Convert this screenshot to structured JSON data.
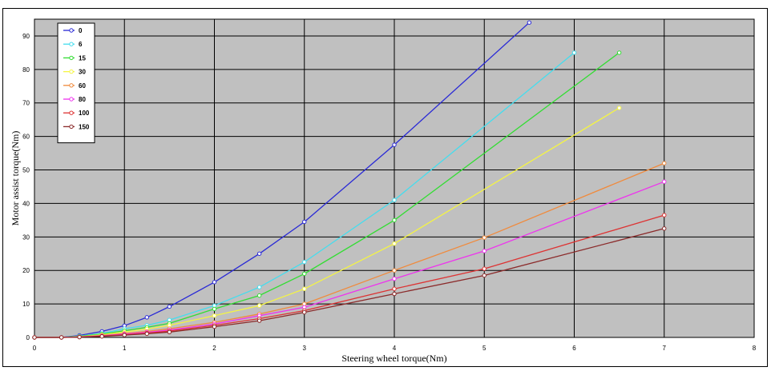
{
  "chart_data": {
    "type": "line",
    "title": "",
    "xlabel": "Steering wheel torque(Nm)",
    "ylabel": "Motor assist torque(Nm)",
    "xlim": [
      0,
      8
    ],
    "ylim": [
      0,
      95
    ],
    "xticks": [
      "0",
      "1",
      "2",
      "3",
      "4",
      "5",
      "6",
      "7",
      "8"
    ],
    "yticks": [
      "0",
      "10",
      "20",
      "30",
      "40",
      "50",
      "60",
      "70",
      "80",
      "90"
    ],
    "grid": true,
    "legend_position": "top-left",
    "background": "#c0c0c0",
    "series": [
      {
        "name": "0",
        "color": "#2a2ad6",
        "points": [
          [
            0,
            0
          ],
          [
            0.3,
            0
          ],
          [
            0.5,
            0.6
          ],
          [
            0.75,
            1.8
          ],
          [
            1,
            3.5
          ],
          [
            1.25,
            6
          ],
          [
            1.5,
            9.2
          ],
          [
            2,
            16.5
          ],
          [
            2.5,
            25
          ],
          [
            3,
            34.5
          ],
          [
            4,
            57.5
          ],
          [
            5.5,
            94
          ]
        ]
      },
      {
        "name": "6",
        "color": "#44ddee",
        "points": [
          [
            0,
            0
          ],
          [
            0.3,
            0
          ],
          [
            0.5,
            0.4
          ],
          [
            0.75,
            1.2
          ],
          [
            1,
            2.6
          ],
          [
            1.25,
            3.6
          ],
          [
            1.5,
            5.2
          ],
          [
            2,
            9.5
          ],
          [
            2.5,
            15
          ],
          [
            3,
            22.5
          ],
          [
            4,
            41
          ],
          [
            6,
            85
          ]
        ]
      },
      {
        "name": "15",
        "color": "#33dd33",
        "points": [
          [
            0,
            0
          ],
          [
            0.3,
            0
          ],
          [
            0.5,
            0.3
          ],
          [
            0.75,
            1
          ],
          [
            1,
            2
          ],
          [
            1.25,
            3
          ],
          [
            1.5,
            4.2
          ],
          [
            2,
            8.5
          ],
          [
            2.5,
            12.5
          ],
          [
            3,
            19
          ],
          [
            4,
            35
          ],
          [
            6.5,
            85
          ]
        ]
      },
      {
        "name": "30",
        "color": "#f5f542",
        "points": [
          [
            0,
            0
          ],
          [
            0.3,
            0
          ],
          [
            0.5,
            0.2
          ],
          [
            0.75,
            0.8
          ],
          [
            1,
            1.6
          ],
          [
            1.25,
            2.5
          ],
          [
            1.5,
            3.6
          ],
          [
            2,
            6.5
          ],
          [
            2.5,
            9.5
          ],
          [
            3,
            14.5
          ],
          [
            4,
            28
          ],
          [
            6.5,
            68.5
          ]
        ]
      },
      {
        "name": "60",
        "color": "#f08a3c",
        "points": [
          [
            0,
            0
          ],
          [
            0.3,
            0
          ],
          [
            0.5,
            0.2
          ],
          [
            0.75,
            0.6
          ],
          [
            1,
            1.2
          ],
          [
            1.25,
            1.8
          ],
          [
            1.5,
            2.6
          ],
          [
            2,
            4.5
          ],
          [
            2.5,
            7
          ],
          [
            3,
            10
          ],
          [
            4,
            20
          ],
          [
            5,
            29.8
          ],
          [
            7,
            52
          ]
        ]
      },
      {
        "name": "80",
        "color": "#ee33ee",
        "points": [
          [
            0,
            0
          ],
          [
            0.3,
            0
          ],
          [
            0.5,
            0.15
          ],
          [
            0.75,
            0.5
          ],
          [
            1,
            1
          ],
          [
            1.25,
            1.5
          ],
          [
            1.5,
            2.2
          ],
          [
            2,
            4
          ],
          [
            2.5,
            6.5
          ],
          [
            3,
            9
          ],
          [
            4,
            17.5
          ],
          [
            5,
            25.8
          ],
          [
            7,
            46.5
          ]
        ]
      },
      {
        "name": "100",
        "color": "#dd3333",
        "points": [
          [
            0,
            0
          ],
          [
            0.3,
            0
          ],
          [
            0.5,
            0.1
          ],
          [
            0.75,
            0.4
          ],
          [
            1,
            0.8
          ],
          [
            1.25,
            1.3
          ],
          [
            1.5,
            1.9
          ],
          [
            2,
            3.6
          ],
          [
            2.5,
            5.6
          ],
          [
            3,
            8
          ],
          [
            4,
            14.5
          ],
          [
            5,
            20.5
          ],
          [
            7,
            36.5
          ]
        ]
      },
      {
        "name": "150",
        "color": "#8b2a2a",
        "points": [
          [
            0,
            0
          ],
          [
            0.3,
            0
          ],
          [
            0.5,
            0.1
          ],
          [
            0.75,
            0.3
          ],
          [
            1,
            0.7
          ],
          [
            1.25,
            1.1
          ],
          [
            1.5,
            1.6
          ],
          [
            2,
            3.2
          ],
          [
            2.5,
            5
          ],
          [
            3,
            7.5
          ],
          [
            4,
            13
          ],
          [
            5,
            18.5
          ],
          [
            7,
            32.5
          ]
        ]
      }
    ]
  }
}
